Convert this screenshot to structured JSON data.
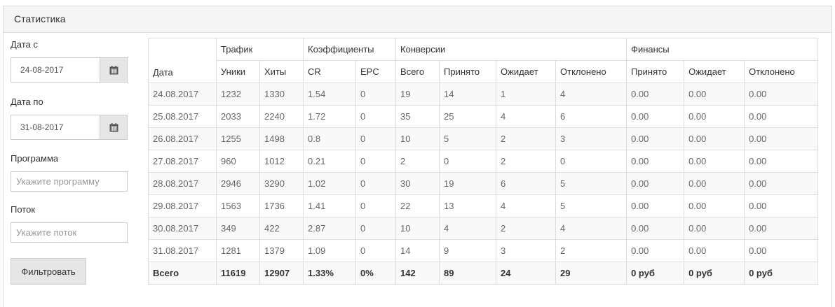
{
  "panel": {
    "title": "Статистика"
  },
  "filters": {
    "date_from_label": "Дата с",
    "date_from_value": "24-08-2017",
    "date_to_label": "Дата по",
    "date_to_value": "31-08-2017",
    "program_label": "Программа",
    "program_placeholder": "Укажите программу",
    "flow_label": "Поток",
    "flow_placeholder": "Укажите поток",
    "submit_label": "Фильтровать",
    "calendar_icon": "calendar-icon"
  },
  "table": {
    "group_headers": {
      "date": "Дата",
      "traffic": "Трафик",
      "coefficients": "Коэффициенты",
      "conversions": "Конверсии",
      "finances": "Финансы"
    },
    "sub_headers": [
      "Уники",
      "Хиты",
      "CR",
      "EPC",
      "Всего",
      "Принято",
      "Ожидает",
      "Отклонено",
      "Принято",
      "Ожидает",
      "Отклонено"
    ],
    "rows": [
      [
        "24.08.2017",
        "1232",
        "1330",
        "1.54",
        "0",
        "19",
        "14",
        "1",
        "4",
        "0.00",
        "0.00",
        "0.00"
      ],
      [
        "25.08.2017",
        "2033",
        "2240",
        "1.72",
        "0",
        "35",
        "25",
        "4",
        "6",
        "0.00",
        "0.00",
        "0.00"
      ],
      [
        "26.08.2017",
        "1255",
        "1498",
        "0.8",
        "0",
        "10",
        "5",
        "2",
        "3",
        "0.00",
        "0.00",
        "0.00"
      ],
      [
        "27.08.2017",
        "960",
        "1012",
        "0.21",
        "0",
        "2",
        "0",
        "2",
        "0",
        "0.00",
        "0.00",
        "0.00"
      ],
      [
        "28.08.2017",
        "2946",
        "3290",
        "1.02",
        "0",
        "30",
        "19",
        "6",
        "5",
        "0.00",
        "0.00",
        "0.00"
      ],
      [
        "29.08.2017",
        "1563",
        "1736",
        "1.41",
        "0",
        "22",
        "13",
        "4",
        "5",
        "0.00",
        "0.00",
        "0.00"
      ],
      [
        "30.08.2017",
        "349",
        "422",
        "2.87",
        "0",
        "10",
        "4",
        "2",
        "4",
        "0.00",
        "0.00",
        "0.00"
      ],
      [
        "31.08.2017",
        "1281",
        "1379",
        "1.09",
        "0",
        "14",
        "9",
        "3",
        "2",
        "0.00",
        "0.00",
        "0.00"
      ]
    ],
    "total": [
      "Всего",
      "11619",
      "12907",
      "1.33%",
      "0%",
      "142",
      "89",
      "24",
      "29",
      "0 руб",
      "0 руб",
      "0 руб"
    ]
  }
}
